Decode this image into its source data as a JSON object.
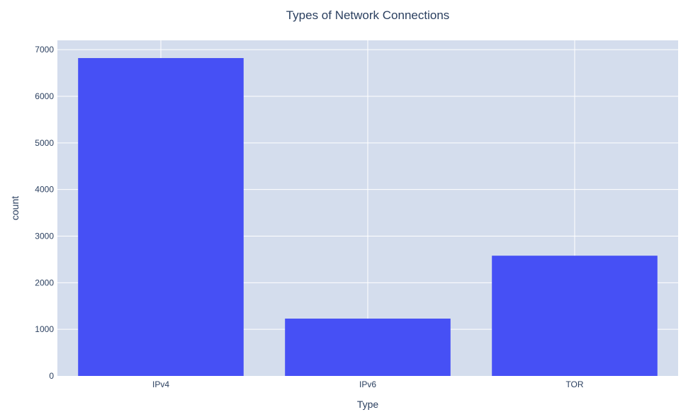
{
  "chart_data": {
    "type": "bar",
    "title": "Types of Network Connections",
    "xlabel": "Type",
    "ylabel": "count",
    "categories": [
      "IPv4",
      "IPv6",
      "TOR"
    ],
    "values": [
      6820,
      1230,
      2580
    ],
    "ylim": [
      0,
      7200
    ],
    "yticks": [
      0,
      1000,
      2000,
      3000,
      4000,
      5000,
      6000,
      7000
    ],
    "grid": true,
    "legend": "none",
    "colors": {
      "bar": "#4650f5",
      "plot_bg": "#d4dded",
      "grid": "#ffffff",
      "text": "#2a3f5f"
    }
  }
}
